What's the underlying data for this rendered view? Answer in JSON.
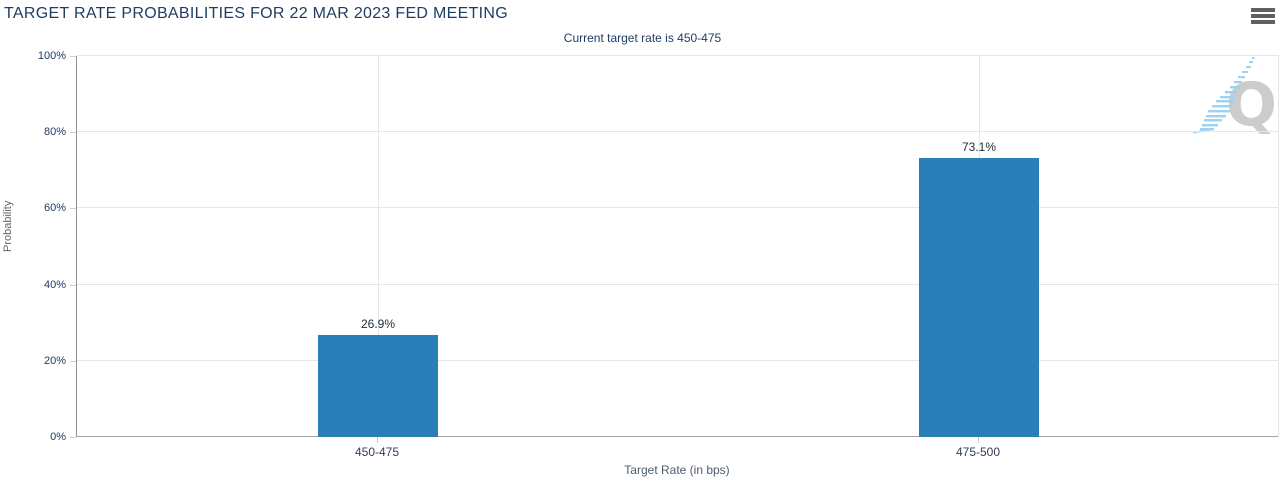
{
  "header": {
    "title": "TARGET RATE PROBABILITIES FOR 22 MAR 2023 FED MEETING",
    "subtitle": "Current target rate is 450-475",
    "menu_icon": "hamburger-icon"
  },
  "chart_data": {
    "type": "bar",
    "title": "TARGET RATE PROBABILITIES FOR 22 MAR 2023 FED MEETING",
    "subtitle": "Current target rate is 450-475",
    "categories": [
      "450-475",
      "475-500"
    ],
    "values": [
      26.9,
      73.1
    ],
    "value_labels": [
      "26.9%",
      "73.1%"
    ],
    "xlabel": "Target Rate (in bps)",
    "ylabel": "Probability",
    "ylim": [
      0,
      100
    ],
    "yticks": [
      0,
      20,
      40,
      60,
      80,
      100
    ],
    "ytick_labels": [
      "0%",
      "20%",
      "40%",
      "60%",
      "80%",
      "100%"
    ],
    "grid": true,
    "legend": "none"
  },
  "colors": {
    "bar": "#2b7fb8",
    "title_text": "#1e3d63",
    "gridline": "#e6e6e6",
    "axis_line": "#a3a3a3",
    "watermark_gray": "#cccccc",
    "watermark_blue": "#9fd2ef"
  },
  "watermark": {
    "icon": "quikstrike-q-logo",
    "letter": "Q"
  }
}
